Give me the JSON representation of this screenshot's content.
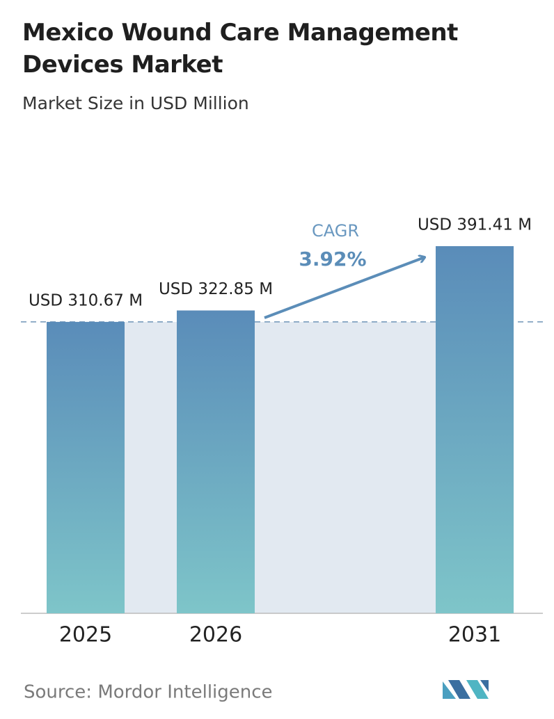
{
  "chart_data": {
    "type": "bar",
    "title": "Mexico Wound Care Management Devices Market",
    "subtitle": "Market Size in USD Million",
    "categories": [
      "2025",
      "2026",
      "2031"
    ],
    "values": [
      310.67,
      322.85,
      391.41
    ],
    "value_labels": [
      "USD 310.67 M",
      "USD 322.85 M",
      "USD 391.41 M"
    ],
    "colors": [
      "#5a8cb9",
      "#7ec5c9"
    ],
    "cagr_label": "CAGR",
    "cagr_value": "3.92%",
    "source": "Source:  Mordor Intelligence"
  }
}
